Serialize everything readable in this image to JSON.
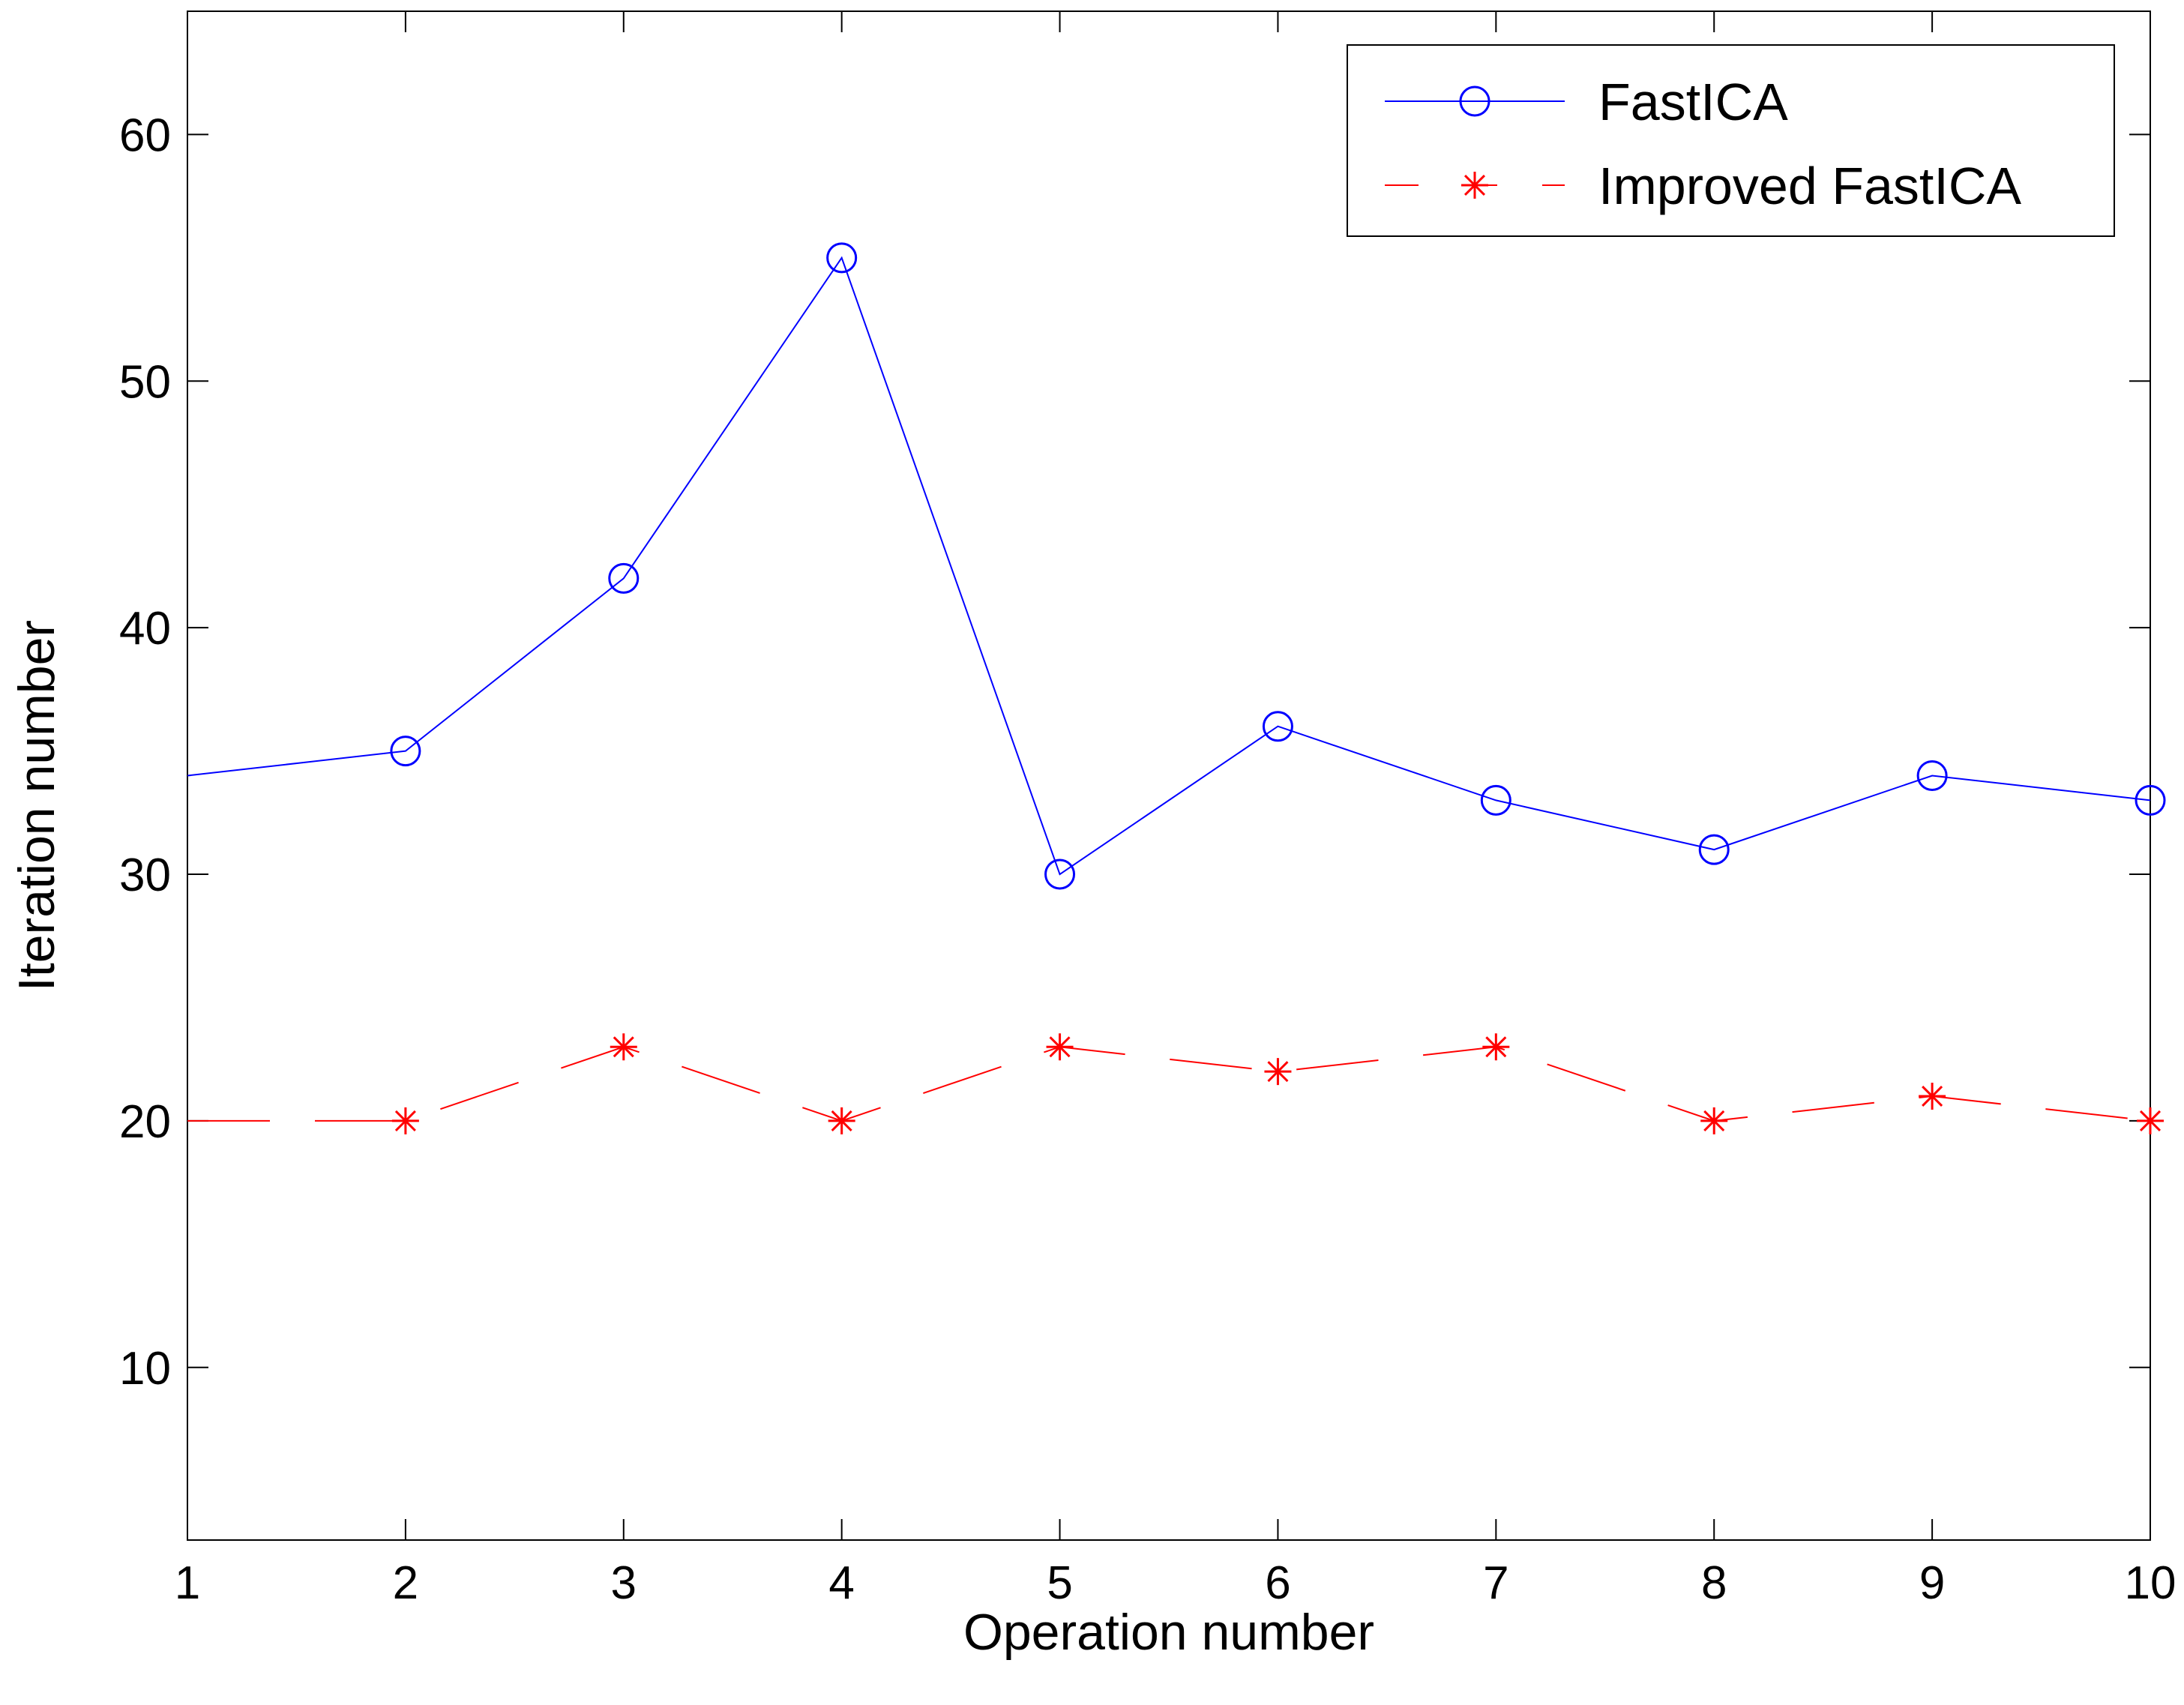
{
  "chart_data": {
    "type": "line",
    "title": "",
    "xlabel": "Operation number",
    "ylabel": "Iteration number",
    "xlim": [
      1,
      10
    ],
    "ylim": [
      3,
      65
    ],
    "x": [
      1,
      2,
      3,
      4,
      5,
      6,
      7,
      8,
      9,
      10
    ],
    "xticks": [
      "1",
      "2",
      "3",
      "4",
      "5",
      "6",
      "7",
      "8",
      "9",
      "10"
    ],
    "yticks": [
      10,
      20,
      30,
      40,
      50,
      60
    ],
    "ytick_labels": [
      "10",
      "20",
      "30",
      "40",
      "50",
      "60"
    ],
    "grid": false,
    "legend_position": "top-right",
    "series": [
      {
        "name": "FastICA",
        "values": [
          34,
          35,
          42,
          55,
          30,
          36,
          33,
          31,
          34,
          33
        ],
        "color": "#0000ff",
        "line_style": "solid",
        "marker": "circle"
      },
      {
        "name": "Improved FastICA",
        "values": [
          20,
          20,
          23,
          20,
          23,
          22,
          23,
          20,
          21,
          20
        ],
        "color": "#ff0000",
        "line_style": "dashed",
        "marker": "asterisk"
      }
    ]
  }
}
